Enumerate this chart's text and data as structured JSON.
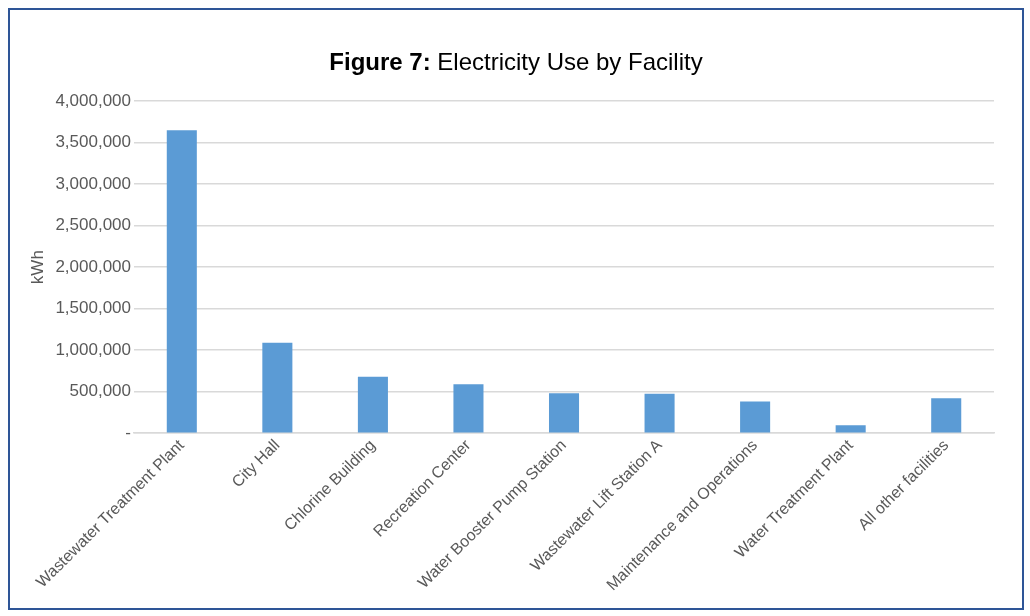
{
  "chart_data": {
    "type": "bar",
    "title": "Figure 7: Electricity Use by Facility",
    "ylabel": "kWh",
    "categories": [
      "Wastewater Treatment Plant",
      "City Hall",
      "Chlorine Building",
      "Recreation Center",
      "Water Booster Pump Station",
      "Wastewater Lift Station A",
      "Maintenance and Operations",
      "Water Treatment Plant",
      "All other facilities"
    ],
    "values": [
      3650000,
      1090000,
      680000,
      590000,
      480000,
      475000,
      380000,
      95000,
      420000
    ],
    "color": "#5b9bd5",
    "ylim": [
      0,
      4000000
    ],
    "yticks": [
      {
        "value": 0,
        "label": "-"
      },
      {
        "value": 500000,
        "label": "500,000"
      },
      {
        "value": 1000000,
        "label": "1,000,000"
      },
      {
        "value": 1500000,
        "label": "1,500,000"
      },
      {
        "value": 2000000,
        "label": "2,000,000"
      },
      {
        "value": 2500000,
        "label": "2,500,000"
      },
      {
        "value": 3000000,
        "label": "3,000,000"
      },
      {
        "value": 3500000,
        "label": "3,500,000"
      },
      {
        "value": 4000000,
        "label": "4,000,000"
      }
    ],
    "grid": "y",
    "legend": false
  }
}
